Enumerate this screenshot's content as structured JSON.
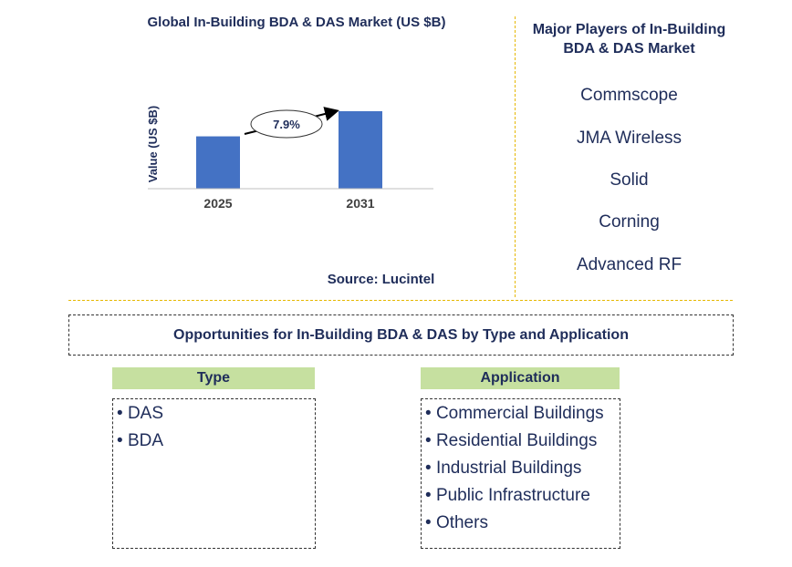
{
  "chart_data": {
    "type": "bar",
    "title": "Global In-Building BDA & DAS Market (US $B)",
    "ylabel": "Value (US $B)",
    "categories": [
      "2025",
      "2031"
    ],
    "values": [
      1.0,
      1.48
    ],
    "ylim": [
      0,
      1.48
    ],
    "annotation": "7.9%",
    "bar_color": "#4472c4"
  },
  "source": "Source: Lucintel",
  "players": {
    "title_line1": "Major Players of In-Building",
    "title_line2": "BDA & DAS Market",
    "items": [
      "Commscope",
      "JMA Wireless",
      "Solid",
      "Corning",
      "Advanced RF"
    ]
  },
  "opportunities": {
    "title": "Opportunities for In-Building BDA & DAS by Type and Application"
  },
  "type_col": {
    "header": "Type",
    "items": [
      "DAS",
      "BDA"
    ]
  },
  "application_col": {
    "header": "Application",
    "items": [
      "Commercial Buildings",
      "Residential Buildings",
      "Industrial Buildings",
      "Public Infrastructure",
      "Others"
    ]
  },
  "colors": {
    "text": "#1f2d5a",
    "accent_green": "#c6e0a0",
    "divider": "#e6b800"
  }
}
